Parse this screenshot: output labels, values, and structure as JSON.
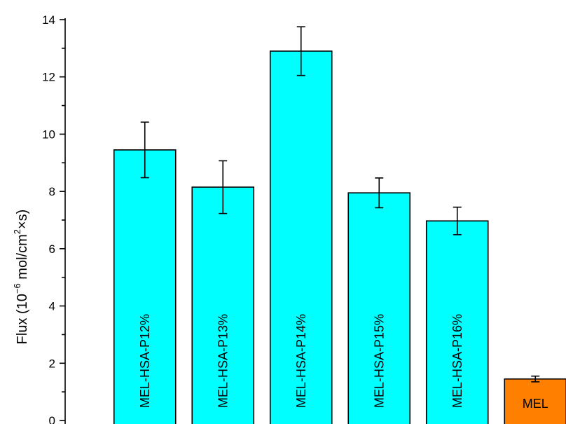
{
  "chart_data": {
    "type": "bar",
    "title": "",
    "ylabel": {
      "prefix": "Flux (10",
      "exp1": "−6",
      "middle": " mol/cm",
      "exp2": "2",
      "suffix": "×s)"
    },
    "ylim": [
      0,
      14
    ],
    "yticks": [
      "0",
      "2",
      "4",
      "6",
      "8",
      "10",
      "12",
      "14"
    ],
    "categories": [
      "MEL-HSA-P12%",
      "MEL-HSA-P13%",
      "MEL-HSA-P14%",
      "MEL-HSA-P15%",
      "MEL-HSA-P16%",
      "MEL"
    ],
    "values": [
      9.45,
      8.15,
      12.9,
      7.95,
      6.97,
      1.45
    ],
    "errors": [
      0.97,
      0.92,
      0.85,
      0.52,
      0.48,
      0.1
    ],
    "colors": [
      "#00FFFF",
      "#00FFFF",
      "#00FFFF",
      "#00FFFF",
      "#00FFFF",
      "#FF8000"
    ],
    "label_orientation": [
      "vertical",
      "vertical",
      "vertical",
      "vertical",
      "vertical",
      "horizontal"
    ]
  }
}
